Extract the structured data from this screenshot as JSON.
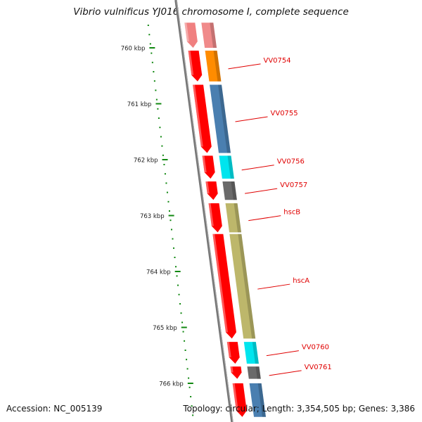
{
  "title": "Vibrio vulnificus YJ016 chromosome I, complete sequence",
  "footer": {
    "accession": "Accession: NC_005139",
    "summary": "Topology: circular; Length: 3,354,505 bp; Genes: 3,386"
  },
  "ruler": {
    "unit": "kbp",
    "ticks": [
      {
        "value": 760,
        "label": "760 kbp"
      },
      {
        "value": 761,
        "label": "761 kbp"
      },
      {
        "value": 762,
        "label": "762 kbp"
      },
      {
        "value": 763,
        "label": "763 kbp"
      },
      {
        "value": 764,
        "label": "764 kbp"
      },
      {
        "value": 765,
        "label": "765 kbp"
      },
      {
        "value": 766,
        "label": "766 kbp"
      }
    ],
    "color": "#118811"
  },
  "colors": {
    "backbone": "#777777",
    "cds": "#ff0000",
    "cds_faded": "#f08080"
  },
  "genes": [
    {
      "name": "",
      "start": 759.55,
      "end": 760.0,
      "color": "#f08a8a",
      "faded": true
    },
    {
      "name": "VV0754",
      "start": 760.05,
      "end": 760.6,
      "color": "#ff8c00"
    },
    {
      "name": "VV0755",
      "start": 760.66,
      "end": 761.88,
      "color": "#4a7fb0"
    },
    {
      "name": "VV0756",
      "start": 761.93,
      "end": 762.34,
      "color": "#00e5ee"
    },
    {
      "name": "VV0757",
      "start": 762.39,
      "end": 762.72,
      "color": "#6a6a6a"
    },
    {
      "name": "hscB",
      "start": 762.78,
      "end": 763.3,
      "color": "#bdb76b"
    },
    {
      "name": "hscA",
      "start": 763.33,
      "end": 765.2,
      "color": "#bdb76b"
    },
    {
      "name": "VV0760",
      "start": 765.26,
      "end": 765.65,
      "color": "#00e5ee"
    },
    {
      "name": "VV0761",
      "start": 765.7,
      "end": 765.92,
      "color": "#6a6a6a"
    },
    {
      "name": "",
      "start": 766.0,
      "end": 766.6,
      "color": "#4a7fb0"
    }
  ]
}
